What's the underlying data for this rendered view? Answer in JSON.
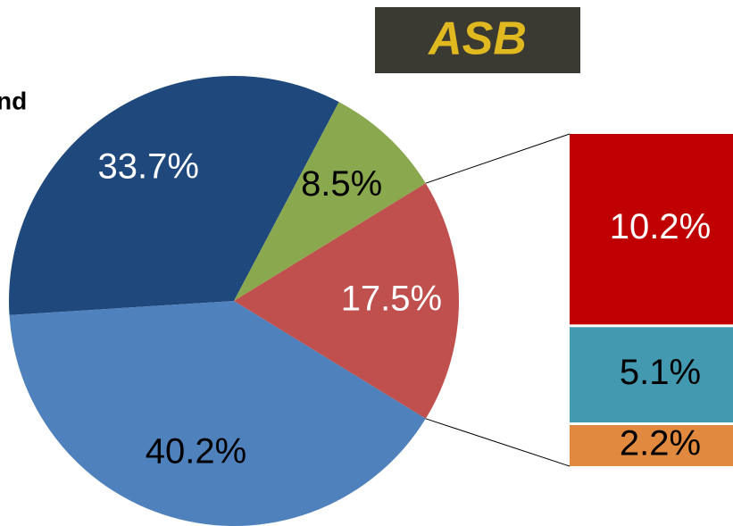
{
  "header": {
    "fragment": "nd",
    "logo": "ASB"
  },
  "chart_data": {
    "type": "pie-of-bar",
    "values": [
      33.7,
      8.5,
      17.5,
      40.2
    ],
    "value_labels": [
      "33.7%",
      "8.5%",
      "17.5%",
      "40.2%"
    ],
    "colors": [
      "#1f497d",
      "#8aa84e",
      "#c0504d",
      "#4f81bd"
    ],
    "bar": {
      "values": [
        10.2,
        5.1,
        2.2
      ],
      "value_labels": [
        "10.2%",
        "5.1%",
        "2.2%"
      ],
      "colors": [
        "#c00000",
        "#4399b0",
        "#e0893f"
      ]
    }
  }
}
